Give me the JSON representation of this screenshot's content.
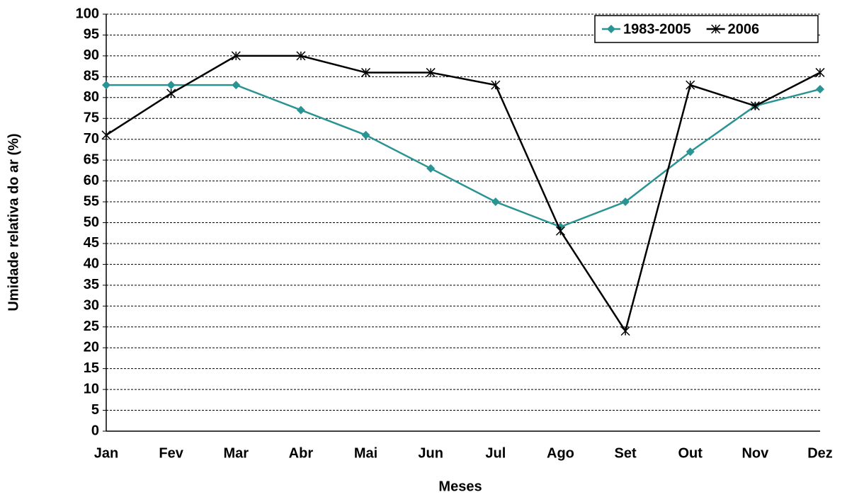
{
  "chart_data": {
    "type": "line",
    "x_label": "Meses",
    "y_label": "Umidade relativa do ar (%)",
    "categories": [
      "Jan",
      "Fev",
      "Mar",
      "Abr",
      "Mai",
      "Jun",
      "Jul",
      "Ago",
      "Set",
      "Out",
      "Nov",
      "Dez"
    ],
    "series": [
      {
        "name": "1983-2005",
        "color": "#2a9494",
        "marker": "diamond",
        "values": [
          83,
          83,
          83,
          77,
          71,
          63,
          55,
          49,
          55,
          67,
          78,
          82
        ]
      },
      {
        "name": "2006",
        "color": "#000000",
        "marker": "star",
        "values": [
          71,
          81,
          90,
          90,
          86,
          86,
          83,
          48,
          24,
          83,
          78,
          86
        ]
      }
    ],
    "ylim": [
      0,
      100
    ],
    "yticks": [
      0,
      5,
      10,
      15,
      20,
      25,
      30,
      35,
      40,
      45,
      50,
      55,
      60,
      65,
      70,
      75,
      80,
      85,
      90,
      95,
      100
    ],
    "grid": true,
    "legend": "upper right"
  }
}
